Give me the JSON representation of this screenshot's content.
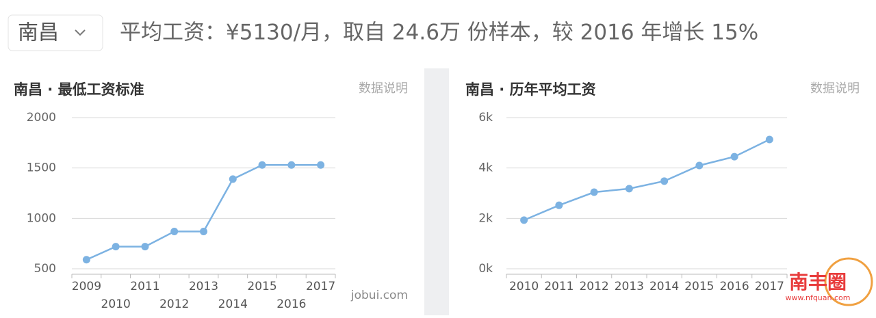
{
  "header": {
    "city": "南昌",
    "summary": "平均工资：¥5130/月，取自 24.6万 份样本，较 2016 年增长 15%"
  },
  "chart_data": [
    {
      "type": "line",
      "title": "南昌 · 最低工资标准",
      "link": "数据说明",
      "source": "jobui.com",
      "categories": [
        "2009",
        "2010",
        "2011",
        "2012",
        "2013",
        "2014",
        "2015",
        "2016",
        "2017"
      ],
      "values": [
        590,
        720,
        720,
        870,
        870,
        1390,
        1530,
        1530,
        1530
      ],
      "color": "#7cb2e2",
      "ylim": [
        500,
        2000
      ],
      "yticks": [
        500,
        1000,
        1500,
        2000
      ],
      "grid": true
    },
    {
      "type": "line",
      "title": "南昌 · 历年平均工资",
      "link": "数据说明",
      "categories": [
        "2010",
        "2011",
        "2012",
        "2013",
        "2014",
        "2015",
        "2016",
        "2017"
      ],
      "values": [
        1930,
        2520,
        3040,
        3180,
        3480,
        4100,
        4450,
        5130
      ],
      "color": "#7cb2e2",
      "ylim": [
        0,
        6000
      ],
      "yticks": [
        {
          "value": 0,
          "label": "0k"
        },
        {
          "value": 2000,
          "label": "2k"
        },
        {
          "value": 4000,
          "label": "4k"
        },
        {
          "value": 6000,
          "label": "6k"
        }
      ],
      "grid": true
    }
  ],
  "watermark": {
    "logo": "南丰圈",
    "url": "www.nfquan.com"
  }
}
